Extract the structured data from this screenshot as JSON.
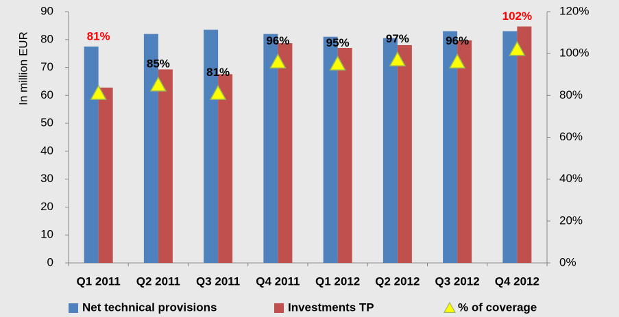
{
  "chart_data": {
    "type": "bar",
    "ylabel": "In million EUR",
    "categories": [
      "Q1 2011",
      "Q2 2011",
      "Q3 2011",
      "Q4 2011",
      "Q1 2012",
      "Q2 2012",
      "Q3 2012",
      "Q4 2012"
    ],
    "series": [
      {
        "name": "Net technical provisions",
        "color": "#4f81bd",
        "type": "bar",
        "values": [
          77.5,
          82,
          83.5,
          82,
          81,
          80.5,
          83,
          83
        ]
      },
      {
        "name": "Investments TP",
        "color": "#c0504d",
        "type": "bar",
        "values": [
          62.8,
          69.3,
          67.6,
          78.7,
          77,
          78,
          79.7,
          84.7
        ]
      },
      {
        "name": "% of coverage",
        "color": "#ffff00",
        "type": "scatter",
        "axis": "y2",
        "values": [
          81,
          85,
          81,
          96,
          95,
          97,
          96,
          102
        ],
        "value_labels": [
          "81%",
          "85%",
          "81%",
          "96%",
          "95%",
          "97%",
          "96%",
          "102%"
        ],
        "label_colors": [
          "#ff0000",
          "#000000",
          "#000000",
          "#000000",
          "#000000",
          "#000000",
          "#000000",
          "#ff0000"
        ]
      }
    ],
    "ylim": [
      0,
      90
    ],
    "yticks": [
      0,
      10,
      20,
      30,
      40,
      50,
      60,
      70,
      80,
      90
    ],
    "y2lim": [
      0,
      120
    ],
    "y2ticks": [
      {
        "value": 0,
        "label": "0%"
      },
      {
        "value": 20,
        "label": "20%"
      },
      {
        "value": 40,
        "label": "40%"
      },
      {
        "value": 60,
        "label": "60%"
      },
      {
        "value": 80,
        "label": "80%"
      },
      {
        "value": 100,
        "label": "100%"
      },
      {
        "value": 120,
        "label": "120%"
      }
    ]
  }
}
